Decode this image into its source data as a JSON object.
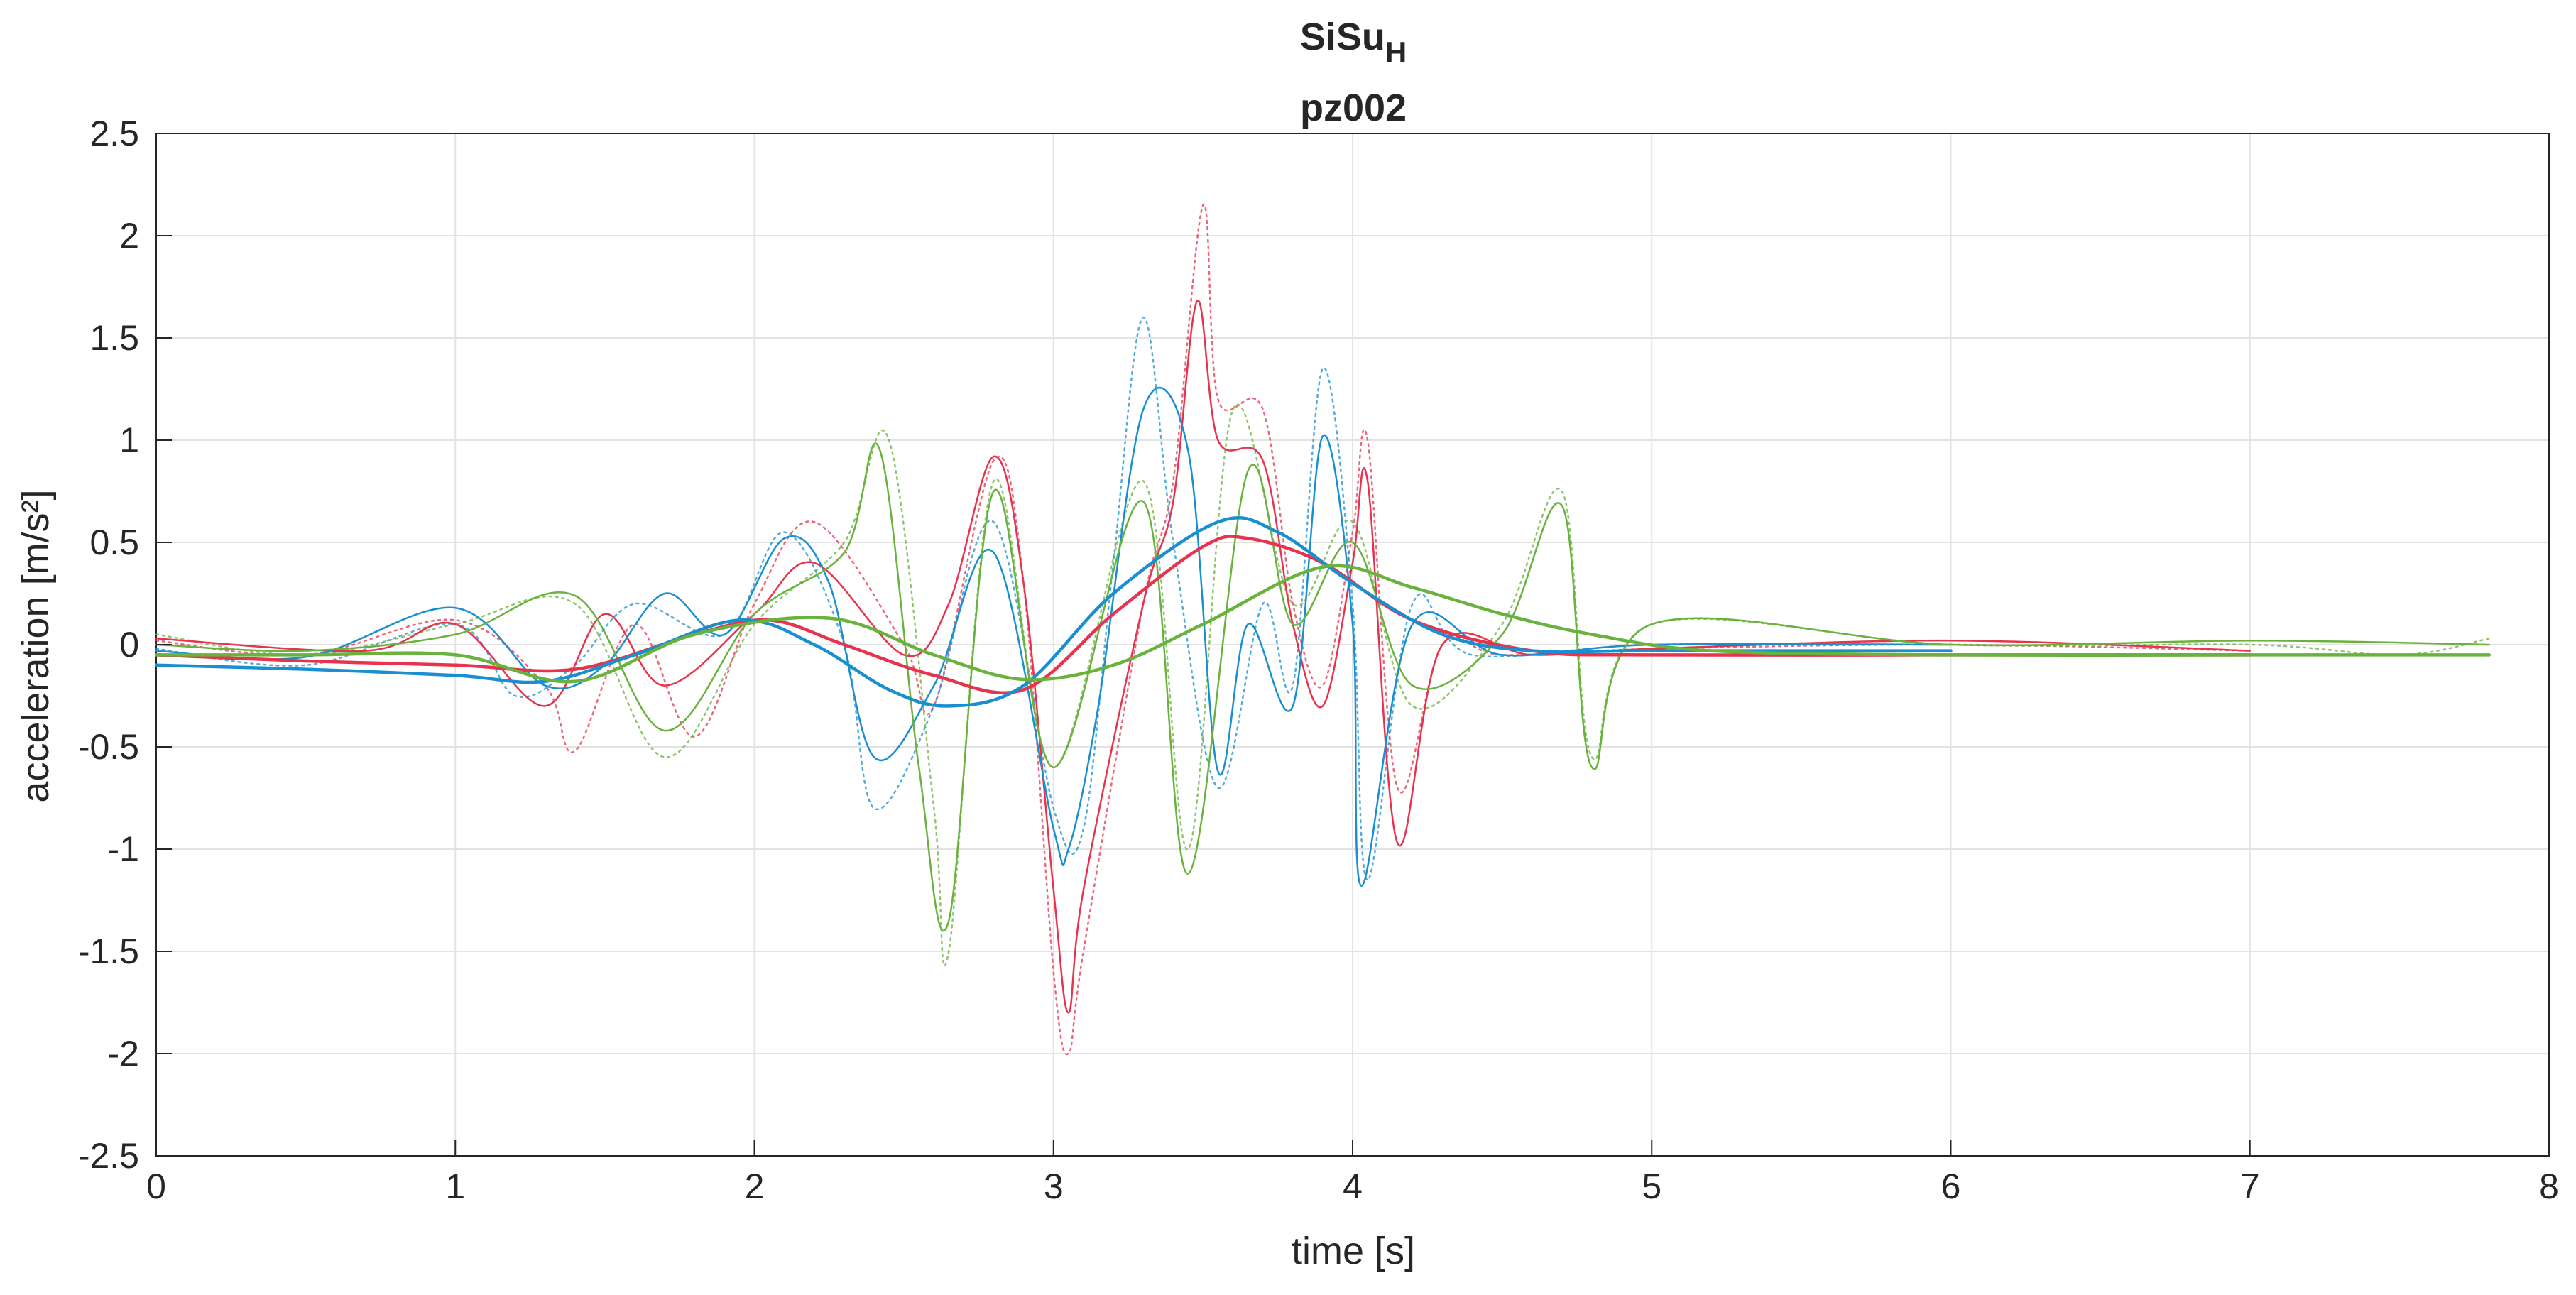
{
  "chart_data": {
    "type": "line",
    "title": "SiSu",
    "title_subscript": "H",
    "subtitle": "pz002",
    "xlabel": "time [s]",
    "ylabel": "acceleration [m/s²]",
    "xlim": [
      0,
      8
    ],
    "ylim": [
      -2.5,
      2.5
    ],
    "xticks": [
      0,
      1,
      2,
      3,
      4,
      5,
      6,
      7,
      8
    ],
    "yticks": [
      -2.5,
      -2,
      -1.5,
      -1,
      -0.5,
      0,
      0.5,
      1,
      1.5,
      2,
      2.5
    ],
    "grid": true,
    "colors": {
      "red": "#e8334f",
      "blue": "#1a8fd0",
      "green": "#6ab23e"
    },
    "series": [
      {
        "name": "red dotted",
        "color": "red",
        "style": "dotted",
        "x": [
          0,
          0.5,
          1.0,
          1.3,
          1.4,
          1.6,
          1.8,
          2.0,
          2.2,
          2.5,
          2.6,
          2.8,
          2.9,
          3.0,
          3.05,
          3.1,
          3.3,
          3.4,
          3.5,
          3.55,
          3.7,
          3.8,
          3.9,
          4.0,
          4.05,
          4.15,
          4.3,
          4.5,
          5.0,
          6.0,
          7.0
        ],
        "y": [
          0.02,
          -0.05,
          0.12,
          -0.2,
          -0.52,
          0.1,
          -0.45,
          0.2,
          0.6,
          0.0,
          -0.3,
          0.9,
          0.3,
          -1.6,
          -2.0,
          -1.5,
          0.2,
          0.8,
          2.15,
          1.2,
          1.15,
          0.2,
          -0.2,
          0.55,
          1.0,
          -0.7,
          0.0,
          -0.05,
          -0.02,
          0.0,
          -0.03
        ]
      },
      {
        "name": "red solid",
        "color": "red",
        "style": "solid",
        "x": [
          0,
          0.5,
          1.0,
          1.4,
          1.8,
          2.05,
          2.3,
          2.6,
          2.9,
          3.2,
          3.5,
          3.65,
          3.9,
          4.2,
          4.6,
          5.0,
          6.0,
          7.0
        ],
        "y": [
          -0.05,
          -0.08,
          -0.1,
          -0.12,
          0.05,
          0.12,
          0.0,
          -0.15,
          -0.22,
          0.15,
          0.48,
          0.52,
          0.4,
          0.12,
          -0.03,
          -0.05,
          -0.05,
          -0.05
        ]
      },
      {
        "name": "red thin",
        "color": "red",
        "style": "thin",
        "x": [
          0,
          0.7,
          1.0,
          1.3,
          1.5,
          1.7,
          2.0,
          2.2,
          2.5,
          2.65,
          2.8,
          2.9,
          3.0,
          3.05,
          3.1,
          3.3,
          3.4,
          3.48,
          3.55,
          3.7,
          3.8,
          3.9,
          4.0,
          4.05,
          4.15,
          4.3,
          4.6,
          5.0,
          6.0,
          7.0
        ],
        "y": [
          0.03,
          -0.03,
          0.1,
          -0.3,
          0.15,
          -0.2,
          0.15,
          0.4,
          -0.05,
          0.2,
          0.92,
          0.3,
          -1.2,
          -1.8,
          -1.2,
          0.2,
          0.7,
          1.68,
          1.0,
          0.9,
          0.1,
          -0.3,
          0.4,
          0.8,
          -0.97,
          0.0,
          -0.05,
          -0.02,
          0.02,
          -0.03
        ]
      },
      {
        "name": "blue dotted",
        "color": "blue",
        "style": "dotted",
        "x": [
          0,
          0.5,
          1.0,
          1.2,
          1.4,
          1.6,
          1.9,
          2.1,
          2.3,
          2.4,
          2.6,
          2.8,
          3.0,
          3.1,
          3.2,
          3.3,
          3.4,
          3.55,
          3.7,
          3.8,
          3.9,
          4.0,
          4.05,
          4.2,
          4.4,
          5.0,
          6.0
        ],
        "y": [
          -0.02,
          -0.1,
          0.1,
          -0.25,
          -0.1,
          0.2,
          0.05,
          0.55,
          0.0,
          -0.8,
          -0.3,
          0.6,
          -0.8,
          -0.9,
          0.4,
          1.6,
          0.5,
          -0.7,
          0.2,
          -0.2,
          1.35,
          0.2,
          -1.15,
          0.2,
          -0.05,
          0.0,
          0.0
        ]
      },
      {
        "name": "blue solid",
        "color": "blue",
        "style": "solid",
        "x": [
          0,
          0.5,
          1.0,
          1.3,
          1.6,
          1.95,
          2.2,
          2.45,
          2.65,
          2.9,
          3.2,
          3.55,
          3.75,
          4.0,
          4.3,
          4.6,
          5.0,
          6.0
        ],
        "y": [
          -0.1,
          -0.12,
          -0.15,
          -0.18,
          -0.05,
          0.12,
          0.0,
          -0.22,
          -0.3,
          -0.2,
          0.25,
          0.6,
          0.55,
          0.3,
          0.05,
          -0.03,
          -0.03,
          -0.03
        ]
      },
      {
        "name": "blue thin",
        "color": "blue",
        "style": "thin",
        "x": [
          0,
          0.5,
          1.0,
          1.3,
          1.5,
          1.7,
          1.9,
          2.1,
          2.25,
          2.4,
          2.6,
          2.8,
          3.0,
          3.05,
          3.15,
          3.3,
          3.45,
          3.55,
          3.65,
          3.8,
          3.9,
          4.0,
          4.03,
          4.2,
          4.5,
          5.0,
          6.0
        ],
        "y": [
          -0.03,
          -0.06,
          0.18,
          -0.2,
          -0.1,
          0.25,
          0.05,
          0.52,
          0.3,
          -0.55,
          -0.2,
          0.45,
          -0.9,
          -1.0,
          -0.3,
          1.15,
          0.95,
          -0.62,
          0.1,
          -0.3,
          1.02,
          0.1,
          -1.18,
          0.1,
          -0.05,
          0.0,
          0.0
        ]
      },
      {
        "name": "green dotted",
        "color": "green",
        "style": "dotted",
        "x": [
          0,
          0.5,
          1.0,
          1.4,
          1.7,
          2.0,
          2.3,
          2.45,
          2.6,
          2.65,
          2.8,
          3.0,
          3.3,
          3.45,
          3.6,
          3.8,
          4.0,
          4.2,
          4.5,
          4.7,
          4.8,
          5.0,
          6.0,
          7.0,
          7.5,
          7.8
        ],
        "y": [
          0.05,
          -0.05,
          0.1,
          0.2,
          -0.55,
          0.1,
          0.5,
          1.0,
          -0.8,
          -1.5,
          0.8,
          -0.6,
          0.8,
          -1.0,
          1.15,
          0.2,
          0.6,
          -0.3,
          0.1,
          0.75,
          -0.55,
          0.1,
          0.0,
          0.0,
          -0.05,
          0.03
        ]
      },
      {
        "name": "green solid",
        "color": "green",
        "style": "solid",
        "x": [
          0,
          0.5,
          1.0,
          1.4,
          1.8,
          2.25,
          2.6,
          2.9,
          3.2,
          3.5,
          3.9,
          4.2,
          4.5,
          4.8,
          5.2,
          6.0,
          7.0,
          7.8
        ],
        "y": [
          -0.05,
          -0.05,
          -0.05,
          -0.18,
          0.05,
          0.13,
          -0.05,
          -0.17,
          -0.1,
          0.1,
          0.38,
          0.28,
          0.15,
          0.05,
          -0.03,
          -0.05,
          -0.05,
          -0.05
        ]
      },
      {
        "name": "green thin",
        "color": "green",
        "style": "thin",
        "x": [
          0,
          0.5,
          1.0,
          1.4,
          1.7,
          2.0,
          2.3,
          2.42,
          2.55,
          2.65,
          2.8,
          3.0,
          3.3,
          3.45,
          3.65,
          3.8,
          4.0,
          4.2,
          4.5,
          4.7,
          4.8,
          5.0,
          6.0,
          7.0,
          7.8
        ],
        "y": [
          0.0,
          -0.03,
          0.05,
          0.24,
          -0.42,
          0.15,
          0.45,
          0.95,
          -0.6,
          -1.35,
          0.75,
          -0.6,
          0.7,
          -1.12,
          0.85,
          0.1,
          0.5,
          -0.2,
          0.05,
          0.68,
          -0.6,
          0.1,
          0.0,
          0.02,
          0.0
        ]
      }
    ]
  }
}
